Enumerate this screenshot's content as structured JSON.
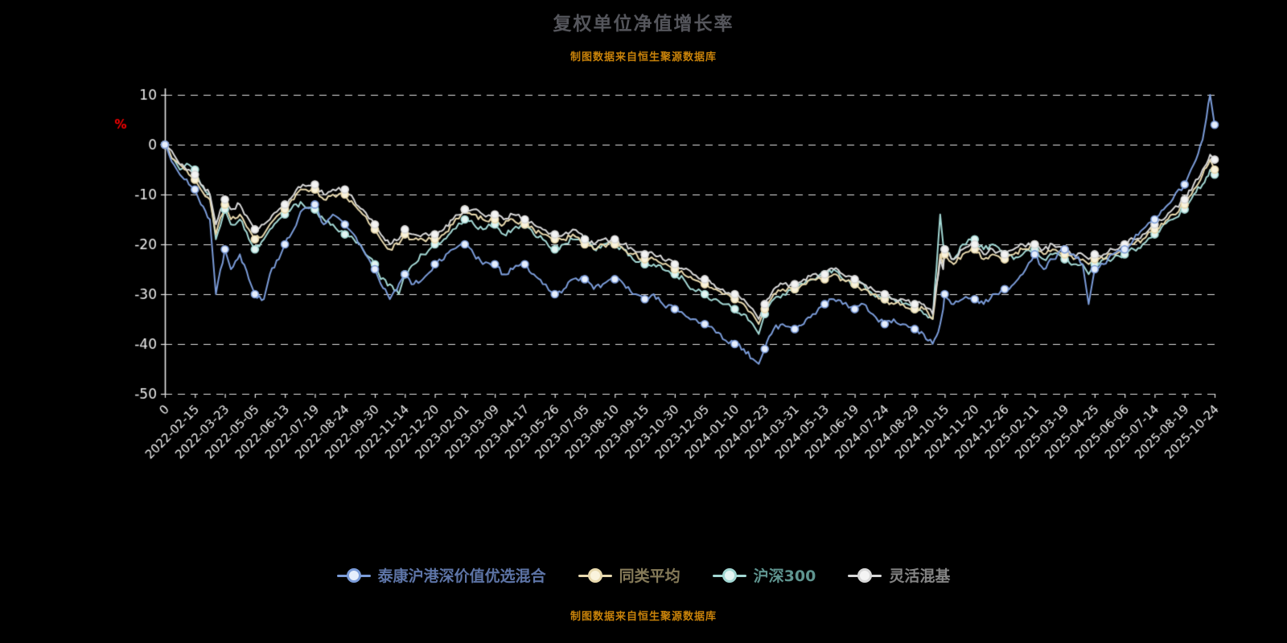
{
  "page": {
    "title": "复权单位净值增长率",
    "source_note_top": "制图数据来自恒生聚源数据库",
    "source_note_bottom": "制图数据来自恒生聚源数据库",
    "background_color": "#000000",
    "title_color": "#55565c",
    "source_color": "#c8820a",
    "axis_text_color": "#ececec",
    "unit_label": "%",
    "unit_label_color": "#ff0000"
  },
  "chart_data": {
    "type": "line",
    "title": "复权单位净值增长率",
    "ylabel": "%",
    "ylim": [
      -50,
      10
    ],
    "yticks": [
      10,
      0,
      -10,
      -20,
      -30,
      -40,
      -50
    ],
    "grid": "dashed-horizontal-white",
    "legend_position": "bottom",
    "x_range": [
      0,
      35
    ],
    "x_tick_labels": [
      "0",
      "2022-02-15",
      "2022-03-23",
      "2022-05-05",
      "2022-06-13",
      "2022-07-19",
      "2022-08-24",
      "2022-09-30",
      "2022-11-14",
      "2022-12-20",
      "2023-02-01",
      "2023-03-09",
      "2023-04-17",
      "2023-05-26",
      "2023-07-05",
      "2023-08-10",
      "2023-09-15",
      "2023-10-30",
      "2023-12-05",
      "2024-01-10",
      "2024-02-23",
      "2024-03-31",
      "2024-05-13",
      "2024-06-19",
      "2024-07-24",
      "2024-08-29",
      "2024-10-15",
      "2024-11-20",
      "2024-12-26",
      "2025-02-11",
      "2025-03-19",
      "2025-04-25",
      "2025-06-06",
      "2025-07-14",
      "2025-08-19",
      "2025-10-24"
    ],
    "x": [
      0,
      0.3,
      0.5,
      0.8,
      1,
      1.2,
      1.5,
      1.7,
      2,
      2.2,
      2.5,
      2.8,
      3,
      3.3,
      3.5,
      3.8,
      4,
      4.3,
      4.6,
      5,
      5.3,
      5.6,
      6,
      6.3,
      6.6,
      7,
      7.2,
      7.5,
      7.8,
      8,
      8.3,
      8.6,
      9,
      9.3,
      9.6,
      10,
      10.3,
      10.6,
      11,
      11.3,
      11.6,
      12,
      12.3,
      12.6,
      13,
      13.3,
      13.6,
      14,
      14.3,
      14.6,
      15,
      15.3,
      15.6,
      16,
      16.3,
      16.6,
      17,
      17.3,
      17.6,
      18,
      18.3,
      18.6,
      19,
      19.3,
      19.6,
      19.8,
      20,
      20.3,
      20.6,
      21,
      21.3,
      21.6,
      22,
      22.3,
      22.6,
      23,
      23.3,
      23.6,
      24,
      24.3,
      24.6,
      25,
      25.3,
      25.6,
      25.85,
      25.95,
      26,
      26.3,
      26.6,
      27,
      27.3,
      27.6,
      28,
      28.3,
      28.6,
      29,
      29.3,
      29.6,
      30,
      30.3,
      30.6,
      30.8,
      31,
      31.3,
      31.6,
      32,
      32.3,
      32.6,
      33,
      33.3,
      33.6,
      34,
      34.3,
      34.6,
      34.85,
      35
    ],
    "series": [
      {
        "name": "泰康沪港深价值优选混合",
        "color": "#7b9cd9",
        "marker_fill": "#e6eefc",
        "legend_text_color": "#5d74a6",
        "values": [
          0,
          -4,
          -6,
          -8,
          -9,
          -12,
          -15,
          -30,
          -21,
          -25,
          -22,
          -27,
          -30,
          -31,
          -26,
          -23,
          -20,
          -17,
          -13,
          -12,
          -16,
          -14,
          -16,
          -18,
          -21,
          -25,
          -28,
          -31,
          -28,
          -26,
          -28,
          -27,
          -24,
          -23,
          -21,
          -20,
          -22,
          -24,
          -24,
          -26,
          -25,
          -24,
          -26,
          -28,
          -30,
          -29,
          -27,
          -27,
          -29,
          -28,
          -27,
          -28,
          -30,
          -31,
          -30,
          -32,
          -33,
          -34,
          -35,
          -36,
          -37,
          -39,
          -40,
          -41,
          -43,
          -44,
          -41,
          -37,
          -36,
          -37,
          -36,
          -34,
          -32,
          -31,
          -32,
          -33,
          -32,
          -34,
          -36,
          -35,
          -36,
          -37,
          -38,
          -40,
          -36,
          -33,
          -30,
          -32,
          -31,
          -31,
          -32,
          -30,
          -29,
          -28,
          -26,
          -22,
          -25,
          -23,
          -21,
          -22,
          -24,
          -32,
          -25,
          -24,
          -22,
          -21,
          -19,
          -17,
          -15,
          -13,
          -11,
          -8,
          -4,
          1,
          10,
          4
        ]
      },
      {
        "name": "同类平均",
        "color": "#e8d9ae",
        "marker_fill": "#faf3dc",
        "legend_text_color": "#857a58",
        "values": [
          0,
          -3,
          -4,
          -6,
          -7,
          -9,
          -11,
          -18,
          -12,
          -15,
          -14,
          -17,
          -19,
          -18,
          -16,
          -14,
          -13,
          -11,
          -9,
          -9,
          -11,
          -10,
          -10,
          -12,
          -14,
          -17,
          -19,
          -21,
          -20,
          -18,
          -19,
          -19,
          -19,
          -18,
          -16,
          -13,
          -14,
          -15,
          -15,
          -16,
          -15,
          -16,
          -17,
          -18,
          -19,
          -19,
          -18,
          -20,
          -21,
          -20,
          -20,
          -21,
          -22,
          -23,
          -23,
          -24,
          -25,
          -26,
          -27,
          -28,
          -29,
          -30,
          -31,
          -32,
          -34,
          -36,
          -33,
          -30,
          -29,
          -29,
          -28,
          -27,
          -27,
          -26,
          -27,
          -28,
          -29,
          -30,
          -31,
          -32,
          -32,
          -33,
          -33,
          -35,
          -22,
          -24,
          -22,
          -24,
          -22,
          -21,
          -23,
          -22,
          -23,
          -22,
          -21,
          -20,
          -22,
          -21,
          -22,
          -23,
          -23,
          -24,
          -23,
          -23,
          -22,
          -21,
          -20,
          -19,
          -17,
          -16,
          -14,
          -12,
          -9,
          -6,
          -3,
          -5
        ]
      },
      {
        "name": "沪深300",
        "color": "#a3d8d4",
        "marker_fill": "#e4f5f3",
        "legend_text_color": "#5f948f",
        "values": [
          0,
          -3,
          -5,
          -4,
          -5,
          -8,
          -10,
          -19,
          -13,
          -16,
          -15,
          -19,
          -21,
          -19,
          -17,
          -15,
          -14,
          -12,
          -12,
          -13,
          -15,
          -16,
          -18,
          -19,
          -21,
          -24,
          -27,
          -28,
          -30,
          -26,
          -24,
          -22,
          -20,
          -19,
          -17,
          -15,
          -16,
          -17,
          -16,
          -18,
          -17,
          -16,
          -18,
          -19,
          -21,
          -20,
          -19,
          -19,
          -21,
          -20,
          -20,
          -21,
          -23,
          -24,
          -24,
          -25,
          -26,
          -27,
          -29,
          -30,
          -31,
          -32,
          -33,
          -34,
          -36,
          -38,
          -34,
          -31,
          -30,
          -29,
          -28,
          -27,
          -26,
          -25,
          -27,
          -28,
          -28,
          -30,
          -31,
          -31,
          -32,
          -33,
          -34,
          -35,
          -14,
          -20,
          -21,
          -23,
          -20,
          -19,
          -21,
          -20,
          -22,
          -23,
          -22,
          -21,
          -23,
          -22,
          -23,
          -24,
          -24,
          -26,
          -24,
          -23,
          -23,
          -22,
          -21,
          -20,
          -18,
          -16,
          -15,
          -13,
          -10,
          -8,
          -5,
          -6
        ]
      },
      {
        "name": "灵活混基",
        "color": "#d8d8d8",
        "marker_fill": "#f4f4f4",
        "legend_text_color": "#848484",
        "values": [
          0,
          -2,
          -4,
          -5,
          -6,
          -8,
          -10,
          -16,
          -11,
          -13,
          -12,
          -15,
          -17,
          -16,
          -15,
          -13,
          -12,
          -10,
          -8,
          -8,
          -10,
          -9,
          -9,
          -11,
          -13,
          -16,
          -18,
          -20,
          -19,
          -17,
          -18,
          -18,
          -18,
          -17,
          -15,
          -13,
          -13,
          -14,
          -14,
          -15,
          -14,
          -15,
          -16,
          -17,
          -18,
          -18,
          -17,
          -19,
          -20,
          -19,
          -19,
          -20,
          -21,
          -22,
          -22,
          -23,
          -24,
          -25,
          -26,
          -27,
          -28,
          -29,
          -30,
          -31,
          -33,
          -35,
          -32,
          -29,
          -28,
          -28,
          -27,
          -26,
          -26,
          -25,
          -26,
          -27,
          -28,
          -29,
          -30,
          -31,
          -31,
          -32,
          -32,
          -34,
          -23,
          -25,
          -21,
          -23,
          -21,
          -20,
          -22,
          -21,
          -22,
          -21,
          -20,
          -20,
          -21,
          -20,
          -21,
          -22,
          -22,
          -23,
          -22,
          -22,
          -21,
          -20,
          -19,
          -18,
          -16,
          -15,
          -13,
          -11,
          -8,
          -5,
          -2,
          -3
        ]
      }
    ]
  }
}
